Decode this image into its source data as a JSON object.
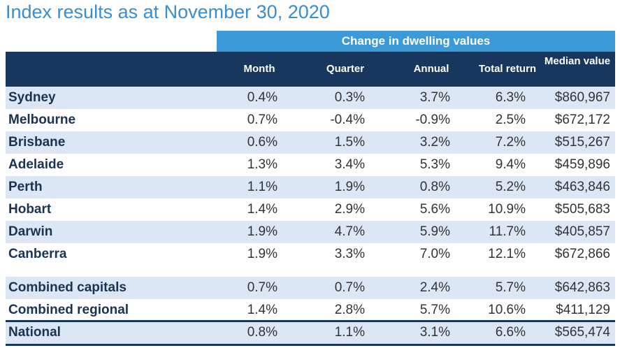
{
  "header": {
    "title": "Index results as at November 30, 2020"
  },
  "table": {
    "group_header": "Change in dwelling values",
    "columns": [
      "Month",
      "Quarter",
      "Annual",
      "Total return",
      "Median value"
    ],
    "rows": [
      [
        "Sydney",
        "0.4%",
        "0.3%",
        "3.7%",
        "6.3%",
        "$860,967"
      ],
      [
        "Melbourne",
        "0.7%",
        "-0.4%",
        "-0.9%",
        "2.5%",
        "$672,172"
      ],
      [
        "Brisbane",
        "0.6%",
        "1.5%",
        "3.2%",
        "7.2%",
        "$515,267"
      ],
      [
        "Adelaide",
        "1.3%",
        "3.4%",
        "5.3%",
        "9.4%",
        "$459,896"
      ],
      [
        "Perth",
        "1.1%",
        "1.9%",
        "0.8%",
        "5.2%",
        "$463,846"
      ],
      [
        "Hobart",
        "1.4%",
        "2.9%",
        "5.6%",
        "10.9%",
        "$505,683"
      ],
      [
        "Darwin",
        "1.9%",
        "4.7%",
        "5.9%",
        "11.7%",
        "$405,857"
      ],
      [
        "Canberra",
        "1.9%",
        "3.3%",
        "7.0%",
        "12.1%",
        "$672,866"
      ]
    ],
    "summary_rows": [
      [
        "Combined capitals",
        "0.7%",
        "0.7%",
        "2.4%",
        "5.7%",
        "$642,863"
      ],
      [
        "Combined regional",
        "1.4%",
        "2.8%",
        "5.7%",
        "10.6%",
        "$411,129"
      ],
      [
        "National",
        "0.8%",
        "1.1%",
        "3.1%",
        "6.6%",
        "$565,474"
      ]
    ]
  }
}
